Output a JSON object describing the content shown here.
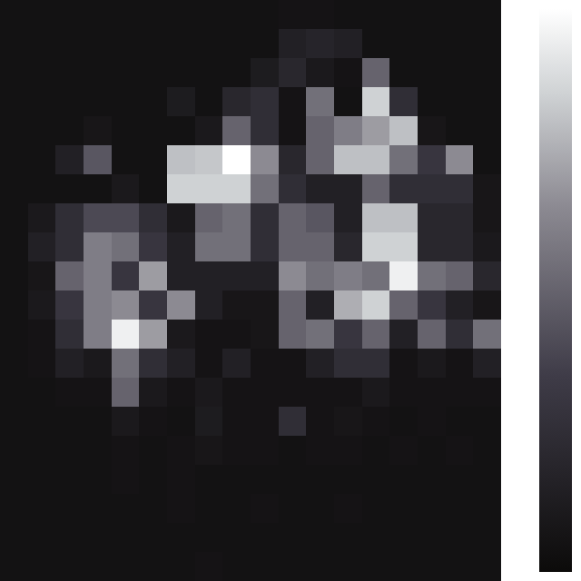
{
  "chart_data": {
    "type": "heatmap",
    "tick_labels": false,
    "zlim": [
      0,
      1
    ],
    "cells": [
      [
        0.05,
        0.05,
        0.05,
        0.05,
        0.05,
        0.05,
        0.05,
        0.05,
        0.05,
        0.05,
        0.06,
        0.06,
        0.05,
        0.05,
        0.05,
        0.05,
        0.05,
        0.05
      ],
      [
        0.05,
        0.05,
        0.05,
        0.05,
        0.05,
        0.05,
        0.05,
        0.05,
        0.05,
        0.05,
        0.15,
        0.18,
        0.15,
        0.05,
        0.05,
        0.05,
        0.05,
        0.05
      ],
      [
        0.05,
        0.05,
        0.05,
        0.05,
        0.05,
        0.05,
        0.05,
        0.05,
        0.05,
        0.12,
        0.2,
        0.1,
        0.06,
        0.5,
        0.05,
        0.05,
        0.05,
        0.05
      ],
      [
        0.05,
        0.05,
        0.05,
        0.05,
        0.05,
        0.05,
        0.12,
        0.05,
        0.2,
        0.25,
        0.06,
        0.55,
        0.05,
        0.85,
        0.25,
        0.05,
        0.05,
        0.05
      ],
      [
        0.05,
        0.05,
        0.05,
        0.08,
        0.05,
        0.05,
        0.05,
        0.1,
        0.5,
        0.25,
        0.06,
        0.5,
        0.6,
        0.7,
        0.8,
        0.08,
        0.05,
        0.05
      ],
      [
        0.05,
        0.05,
        0.15,
        0.45,
        0.05,
        0.05,
        0.8,
        0.82,
        1.0,
        0.65,
        0.2,
        0.5,
        0.8,
        0.8,
        0.55,
        0.3,
        0.65,
        0.05
      ],
      [
        0.05,
        0.05,
        0.05,
        0.05,
        0.1,
        0.05,
        0.85,
        0.85,
        0.85,
        0.55,
        0.25,
        0.15,
        0.15,
        0.5,
        0.25,
        0.25,
        0.25,
        0.08
      ],
      [
        0.05,
        0.1,
        0.25,
        0.4,
        0.4,
        0.25,
        0.1,
        0.5,
        0.55,
        0.25,
        0.5,
        0.45,
        0.15,
        0.8,
        0.8,
        0.2,
        0.2,
        0.08
      ],
      [
        0.05,
        0.15,
        0.25,
        0.6,
        0.55,
        0.3,
        0.15,
        0.55,
        0.55,
        0.25,
        0.5,
        0.5,
        0.2,
        0.85,
        0.85,
        0.2,
        0.2,
        0.1
      ],
      [
        0.05,
        0.08,
        0.5,
        0.6,
        0.3,
        0.7,
        0.15,
        0.15,
        0.15,
        0.15,
        0.65,
        0.55,
        0.6,
        0.55,
        0.95,
        0.55,
        0.5,
        0.2
      ],
      [
        0.05,
        0.1,
        0.3,
        0.6,
        0.65,
        0.3,
        0.65,
        0.15,
        0.08,
        0.08,
        0.5,
        0.15,
        0.75,
        0.85,
        0.5,
        0.3,
        0.15,
        0.08
      ],
      [
        0.05,
        0.06,
        0.25,
        0.6,
        0.95,
        0.7,
        0.1,
        0.06,
        0.06,
        0.08,
        0.5,
        0.55,
        0.3,
        0.5,
        0.15,
        0.5,
        0.25,
        0.55
      ],
      [
        0.05,
        0.06,
        0.15,
        0.1,
        0.55,
        0.25,
        0.15,
        0.06,
        0.15,
        0.06,
        0.06,
        0.15,
        0.25,
        0.25,
        0.06,
        0.1,
        0.06,
        0.15
      ],
      [
        0.05,
        0.05,
        0.06,
        0.06,
        0.5,
        0.1,
        0.06,
        0.1,
        0.06,
        0.06,
        0.06,
        0.06,
        0.06,
        0.1,
        0.06,
        0.06,
        0.06,
        0.06
      ],
      [
        0.05,
        0.05,
        0.05,
        0.05,
        0.1,
        0.06,
        0.05,
        0.12,
        0.06,
        0.06,
        0.25,
        0.06,
        0.08,
        0.06,
        0.05,
        0.06,
        0.05,
        0.05
      ],
      [
        0.05,
        0.05,
        0.05,
        0.05,
        0.06,
        0.05,
        0.06,
        0.08,
        0.06,
        0.06,
        0.05,
        0.06,
        0.06,
        0.05,
        0.06,
        0.05,
        0.06,
        0.05
      ],
      [
        0.05,
        0.05,
        0.05,
        0.05,
        0.06,
        0.05,
        0.06,
        0.05,
        0.05,
        0.05,
        0.05,
        0.05,
        0.05,
        0.05,
        0.05,
        0.05,
        0.05,
        0.05
      ],
      [
        0.05,
        0.05,
        0.05,
        0.05,
        0.05,
        0.05,
        0.06,
        0.05,
        0.05,
        0.06,
        0.05,
        0.05,
        0.06,
        0.05,
        0.05,
        0.05,
        0.05,
        0.05
      ],
      [
        0.05,
        0.05,
        0.05,
        0.05,
        0.05,
        0.05,
        0.05,
        0.05,
        0.05,
        0.05,
        0.05,
        0.05,
        0.05,
        0.05,
        0.05,
        0.05,
        0.05,
        0.05
      ],
      [
        0.05,
        0.05,
        0.05,
        0.05,
        0.05,
        0.05,
        0.05,
        0.06,
        0.05,
        0.05,
        0.05,
        0.05,
        0.05,
        0.05,
        0.05,
        0.05,
        0.05,
        0.05
      ]
    ]
  }
}
